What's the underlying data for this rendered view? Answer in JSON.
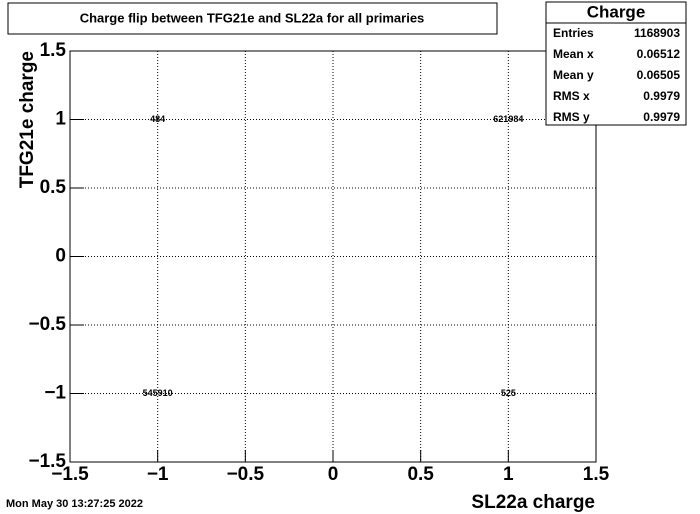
{
  "chart_data": {
    "type": "histogram2d-text",
    "title": "Charge flip between TFG21e and SL22a for all primaries",
    "xlabel": "SL22a charge",
    "ylabel": "TFG21e charge",
    "x": [
      -1,
      1,
      -1,
      1
    ],
    "y": [
      1,
      1,
      -1,
      -1
    ],
    "values": [
      484,
      621984,
      545910,
      525
    ],
    "xlim": [
      -1.5,
      1.5
    ],
    "ylim": [
      -1.5,
      1.5
    ],
    "xticks": [
      {
        "value": -1.5,
        "label": "−1.5"
      },
      {
        "value": -1,
        "label": "−1"
      },
      {
        "value": -0.5,
        "label": "−0.5"
      },
      0,
      0.5,
      1,
      1.5
    ],
    "yticks": [
      {
        "value": -1.5,
        "label": "−1.5"
      },
      {
        "value": -1,
        "label": "−1"
      },
      {
        "value": -0.5,
        "label": "−0.5"
      },
      0,
      0.5,
      1,
      1.5
    ],
    "grid": true,
    "stats": {
      "title": "Charge",
      "rows": [
        {
          "label": "Entries",
          "value": 1168903
        },
        {
          "label": "Mean x",
          "value": 0.06512
        },
        {
          "label": "Mean y",
          "value": 0.06505
        },
        {
          "label": "RMS x",
          "value": 0.9979
        },
        {
          "label": "RMS y",
          "value": 0.9979
        }
      ]
    },
    "timestamp": "Mon May 30 13:27:25 2022"
  }
}
